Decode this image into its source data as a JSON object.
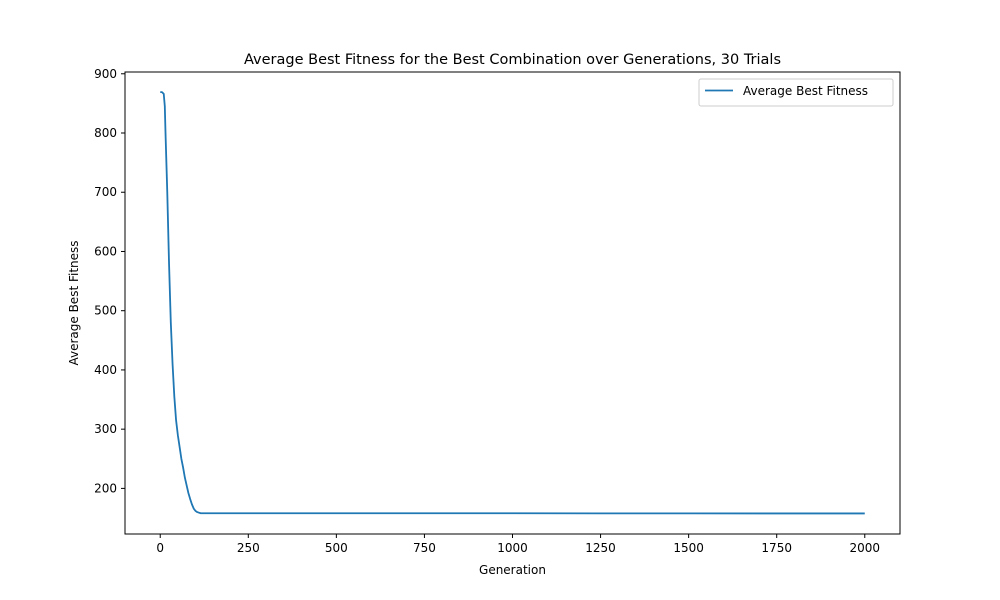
{
  "chart_data": {
    "type": "line",
    "title": "Average Best Fitness for the Best Combination over Generations, 30 Trials",
    "xlabel": "Generation",
    "ylabel": "Average Best Fitness",
    "xlim": [
      -100,
      2100
    ],
    "ylim": [
      123,
      903
    ],
    "xticks": [
      0,
      250,
      500,
      750,
      1000,
      1250,
      1500,
      1750,
      2000
    ],
    "yticks": [
      200,
      300,
      400,
      500,
      600,
      700,
      800,
      900
    ],
    "grid": false,
    "legend_position": "top-right",
    "colors": {
      "series": "#1f77b4"
    },
    "series": [
      {
        "name": "Average Best Fitness",
        "x": [
          0,
          5,
          10,
          13,
          15,
          18,
          20,
          25,
          30,
          35,
          40,
          45,
          50,
          55,
          60,
          65,
          70,
          75,
          80,
          85,
          90,
          95,
          100,
          105,
          110,
          115,
          120,
          130,
          150,
          200,
          300,
          500,
          750,
          1000,
          1250,
          1500,
          1750,
          2000
        ],
        "y": [
          869,
          869,
          866,
          845,
          800,
          740,
          700,
          580,
          480,
          410,
          355,
          315,
          290,
          270,
          250,
          235,
          218,
          205,
          192,
          182,
          173,
          166,
          162,
          160,
          159,
          158,
          158,
          158,
          158,
          158,
          158,
          158,
          158,
          158,
          157.8,
          157.8,
          157.7,
          157.7
        ]
      }
    ]
  }
}
